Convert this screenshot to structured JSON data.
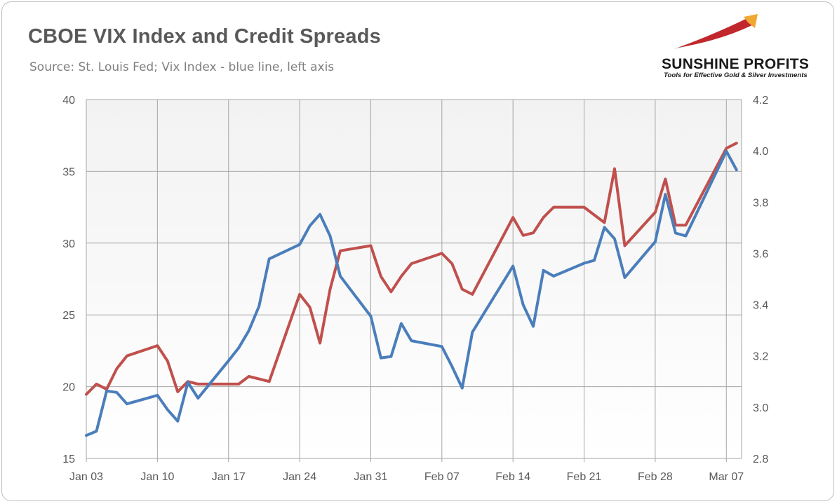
{
  "header": {
    "title": "CBOE VIX Index and Credit Spreads",
    "subtitle": "Source: St. Louis Fed; Vix Index - blue line, left axis"
  },
  "logo": {
    "name": "SUNSHINE PROFITS",
    "tagline": "Tools for Effective Gold & Silver Investments",
    "colors": {
      "gold": "#f0a830",
      "red": "#c0282d",
      "gray": "#b5b5b5"
    }
  },
  "chart_data": {
    "type": "line",
    "x_ticks": [
      "Jan 03",
      "Jan 10",
      "Jan 17",
      "Jan 24",
      "Jan 31",
      "Feb 07",
      "Feb 14",
      "Feb 21",
      "Feb 28",
      "Mar 07"
    ],
    "x_tick_days": [
      0,
      7,
      14,
      21,
      28,
      35,
      42,
      49,
      56,
      63
    ],
    "left_axis": {
      "min": 15,
      "max": 40,
      "ticks": [
        "15",
        "20",
        "25",
        "30",
        "35",
        "40"
      ]
    },
    "right_axis": {
      "min": 2.8,
      "max": 4.2,
      "ticks": [
        "2.8",
        "3.0",
        "3.2",
        "3.4",
        "3.6",
        "3.8",
        "4.0",
        "4.2"
      ]
    },
    "grid": true,
    "legend": "none",
    "series": [
      {
        "axis": "left",
        "color": "#4a7ebb",
        "x": [
          0,
          1,
          2,
          3,
          4,
          7,
          8,
          9,
          10,
          11,
          14,
          15,
          16,
          17,
          18,
          21,
          22,
          23,
          24,
          25,
          28,
          29,
          30,
          31,
          32,
          35,
          36,
          37,
          38,
          42,
          43,
          44,
          45,
          46,
          49,
          50,
          51,
          52,
          53,
          56,
          57,
          58,
          59,
          63,
          64
        ],
        "values": [
          16.6,
          16.9,
          19.7,
          19.6,
          18.8,
          19.4,
          18.4,
          17.6,
          20.3,
          19.2,
          21.8,
          22.7,
          23.9,
          25.6,
          28.9,
          29.9,
          31.2,
          32.0,
          30.5,
          27.7,
          24.9,
          22.0,
          22.1,
          24.4,
          23.2,
          22.8,
          21.4,
          19.9,
          23.8,
          28.4,
          25.7,
          24.2,
          28.1,
          27.7,
          28.6,
          28.8,
          31.1,
          30.3,
          27.6,
          30.1,
          33.4,
          30.7,
          30.5,
          36.4,
          35.1
        ]
      },
      {
        "axis": "right",
        "color": "#c0504d",
        "x": [
          0,
          1,
          2,
          3,
          4,
          7,
          8,
          9,
          10,
          11,
          14,
          15,
          16,
          17,
          18,
          21,
          22,
          23,
          24,
          25,
          28,
          29,
          30,
          31,
          32,
          35,
          36,
          37,
          38,
          42,
          43,
          44,
          45,
          46,
          49,
          50,
          51,
          52,
          53,
          56,
          57,
          58,
          59,
          63,
          64
        ],
        "values": [
          3.05,
          3.09,
          3.07,
          3.15,
          3.2,
          3.24,
          3.18,
          3.06,
          3.1,
          3.09,
          3.09,
          3.09,
          3.12,
          3.11,
          3.1,
          3.44,
          3.39,
          3.25,
          3.46,
          3.61,
          3.63,
          3.51,
          3.45,
          3.51,
          3.56,
          3.6,
          3.56,
          3.46,
          3.44,
          3.74,
          3.67,
          3.68,
          3.74,
          3.78,
          3.78,
          3.75,
          3.72,
          3.93,
          3.63,
          3.76,
          3.89,
          3.71,
          3.71,
          4.01,
          4.03
        ]
      }
    ]
  }
}
